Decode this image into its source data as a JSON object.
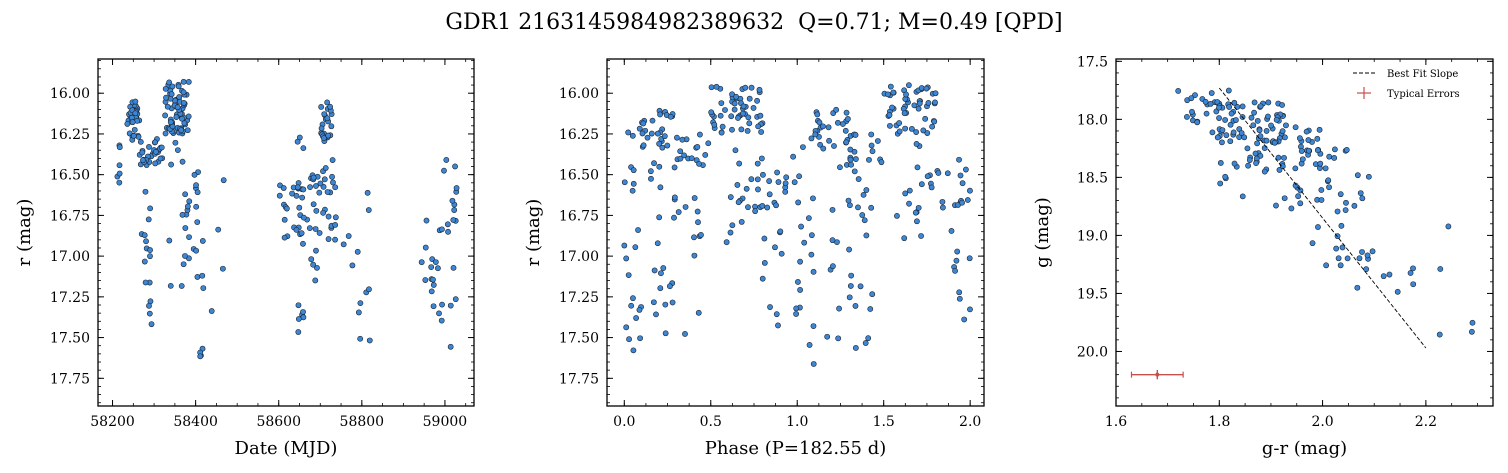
{
  "figure": {
    "title": "GDR1 2163145984982389632  Q=0.71; M=0.49 [QPD]"
  },
  "colors": {
    "point_fill": "#3d86d4",
    "point_edge": "#1c2430",
    "error_bar": "#c8504a",
    "fit_line": "#000000"
  },
  "chart_data": [
    {
      "type": "scatter",
      "xlabel": "Date (MJD)",
      "ylabel": "r (mag)",
      "xlim": [
        58165,
        59070
      ],
      "ylim": [
        17.92,
        15.79
      ],
      "y_inverted": true,
      "xticks": [
        58200,
        58400,
        58600,
        58800,
        59000
      ],
      "yticks": [
        16.0,
        16.25,
        16.5,
        16.75,
        17.0,
        17.25,
        17.5,
        17.75
      ],
      "ytick_labels": [
        "16.00",
        "16.25",
        "16.50",
        "16.75",
        "17.00",
        "17.25",
        "17.50",
        "17.75"
      ],
      "clusters": [
        {
          "x": [
            58210,
            58220
          ],
          "y": [
            16.22,
            16.55
          ],
          "n": 6
        },
        {
          "x": [
            58235,
            58265
          ],
          "y": [
            16.05,
            16.3
          ],
          "n": 34
        },
        {
          "x": [
            58265,
            58300
          ],
          "y": [
            16.25,
            16.45
          ],
          "n": 16
        },
        {
          "x": [
            58270,
            58300
          ],
          "y": [
            16.6,
            17.42
          ],
          "n": 16
        },
        {
          "x": [
            58300,
            58320
          ],
          "y": [
            16.28,
            16.45
          ],
          "n": 14
        },
        {
          "x": [
            58325,
            58385
          ],
          "y": [
            15.92,
            16.25
          ],
          "n": 70
        },
        {
          "x": [
            58335,
            58385
          ],
          "y": [
            16.3,
            17.2
          ],
          "n": 18
        },
        {
          "x": [
            58395,
            58410
          ],
          "y": [
            16.45,
            17.05
          ],
          "n": 7
        },
        {
          "x": [
            58410,
            58420
          ],
          "y": [
            17.55,
            17.78
          ],
          "n": 4
        },
        {
          "x": [
            58400,
            58480
          ],
          "y": [
            16.43,
            17.42
          ],
          "n": 10
        },
        {
          "x": [
            58600,
            58640
          ],
          "y": [
            16.55,
            16.9
          ],
          "n": 12
        },
        {
          "x": [
            58640,
            58660
          ],
          "y": [
            16.25,
            16.95
          ],
          "n": 18
        },
        {
          "x": [
            58645,
            58660
          ],
          "y": [
            17.3,
            17.5
          ],
          "n": 6
        },
        {
          "x": [
            58660,
            58700
          ],
          "y": [
            16.5,
            17.2
          ],
          "n": 20
        },
        {
          "x": [
            58700,
            58730
          ],
          "y": [
            16.05,
            16.3
          ],
          "n": 24
        },
        {
          "x": [
            58700,
            58740
          ],
          "y": [
            16.4,
            16.9
          ],
          "n": 20
        },
        {
          "x": [
            58740,
            58820
          ],
          "y": [
            16.6,
            17.55
          ],
          "n": 12
        },
        {
          "x": [
            58940,
            58970
          ],
          "y": [
            16.7,
            17.2
          ],
          "n": 6
        },
        {
          "x": [
            58965,
            58995
          ],
          "y": [
            16.8,
            17.45
          ],
          "n": 12
        },
        {
          "x": [
            58995,
            59030
          ],
          "y": [
            16.3,
            17.6
          ],
          "n": 16
        }
      ]
    },
    {
      "type": "scatter",
      "xlabel": "Phase (P=182.55 d)",
      "ylabel": "r (mag)",
      "xlim": [
        -0.1,
        2.08
      ],
      "ylim": [
        17.92,
        15.79
      ],
      "y_inverted": true,
      "xticks": [
        0.0,
        0.5,
        1.0,
        1.5,
        2.0
      ],
      "xtick_labels": [
        "0.0",
        "0.5",
        "1.0",
        "1.5",
        "2.0"
      ],
      "yticks": [
        16.0,
        16.25,
        16.5,
        16.75,
        17.0,
        17.25,
        17.5,
        17.75
      ],
      "ytick_labels": [
        "16.00",
        "16.25",
        "16.50",
        "16.75",
        "17.00",
        "17.25",
        "17.50",
        "17.75"
      ],
      "clusters": [
        {
          "x": [
            0.0,
            0.1
          ],
          "y": [
            16.2,
            17.75
          ],
          "n": 22
        },
        {
          "x": [
            0.1,
            0.3
          ],
          "y": [
            16.1,
            16.35
          ],
          "n": 26
        },
        {
          "x": [
            0.15,
            0.45
          ],
          "y": [
            16.4,
            17.6
          ],
          "n": 34
        },
        {
          "x": [
            0.3,
            0.5
          ],
          "y": [
            16.25,
            16.45
          ],
          "n": 16
        },
        {
          "x": [
            0.5,
            0.8
          ],
          "y": [
            15.95,
            16.25
          ],
          "n": 52
        },
        {
          "x": [
            0.55,
            0.75
          ],
          "y": [
            16.3,
            16.95
          ],
          "n": 14
        },
        {
          "x": [
            0.75,
            0.95
          ],
          "y": [
            16.4,
            16.75
          ],
          "n": 20
        },
        {
          "x": [
            0.8,
            0.95
          ],
          "y": [
            16.8,
            17.45
          ],
          "n": 10
        },
        {
          "x": [
            0.95,
            1.1
          ],
          "y": [
            16.2,
            17.75
          ],
          "n": 22
        },
        {
          "x": [
            1.1,
            1.3
          ],
          "y": [
            16.1,
            16.35
          ],
          "n": 26
        },
        {
          "x": [
            1.15,
            1.45
          ],
          "y": [
            16.4,
            17.6
          ],
          "n": 34
        },
        {
          "x": [
            1.3,
            1.5
          ],
          "y": [
            16.25,
            16.45
          ],
          "n": 16
        },
        {
          "x": [
            1.5,
            1.8
          ],
          "y": [
            15.95,
            16.25
          ],
          "n": 52
        },
        {
          "x": [
            1.55,
            1.75
          ],
          "y": [
            16.3,
            16.95
          ],
          "n": 14
        },
        {
          "x": [
            1.75,
            2.0
          ],
          "y": [
            16.4,
            16.75
          ],
          "n": 20
        },
        {
          "x": [
            1.8,
            2.0
          ],
          "y": [
            16.8,
            17.45
          ],
          "n": 10
        }
      ]
    },
    {
      "type": "scatter",
      "xlabel": "g-r (mag)",
      "ylabel": "g (mag)",
      "xlim": [
        1.6,
        2.33
      ],
      "ylim": [
        20.47,
        17.48
      ],
      "y_inverted": true,
      "xticks": [
        1.6,
        1.8,
        2.0,
        2.2
      ],
      "xtick_labels": [
        "1.6",
        "1.8",
        "2.0",
        "2.2"
      ],
      "yticks": [
        17.5,
        18.0,
        18.5,
        19.0,
        19.5,
        20.0
      ],
      "ytick_labels": [
        "17.5",
        "18.0",
        "18.5",
        "19.0",
        "19.5",
        "20.0"
      ],
      "clusters": [
        {
          "x": [
            1.72,
            1.82
          ],
          "y": [
            17.75,
            18.05
          ],
          "n": 22
        },
        {
          "x": [
            1.78,
            1.93
          ],
          "y": [
            17.85,
            18.2
          ],
          "n": 60
        },
        {
          "x": [
            1.85,
            2.0
          ],
          "y": [
            18.05,
            18.45
          ],
          "n": 45
        },
        {
          "x": [
            1.9,
            2.1
          ],
          "y": [
            18.25,
            18.75
          ],
          "n": 30
        },
        {
          "x": [
            1.8,
            1.95
          ],
          "y": [
            18.2,
            18.8
          ],
          "n": 10
        },
        {
          "x": [
            1.95,
            2.1
          ],
          "y": [
            18.6,
            19.3
          ],
          "n": 18
        },
        {
          "x": [
            2.05,
            2.2
          ],
          "y": [
            19.0,
            19.6
          ],
          "n": 10
        },
        {
          "x": [
            2.2,
            2.3
          ],
          "y": [
            18.8,
            20.0
          ],
          "n": 5
        }
      ],
      "best_fit": {
        "x": [
          1.8,
          2.2
        ],
        "y": [
          17.73,
          19.97
        ]
      },
      "typical_errors": {
        "x": 1.68,
        "y": 20.2,
        "xerr": 0.05,
        "yerr": 0.04
      },
      "legend": {
        "placement": "upper-right",
        "entries": [
          "Best Fit Slope",
          "Typical Errors"
        ]
      }
    }
  ]
}
